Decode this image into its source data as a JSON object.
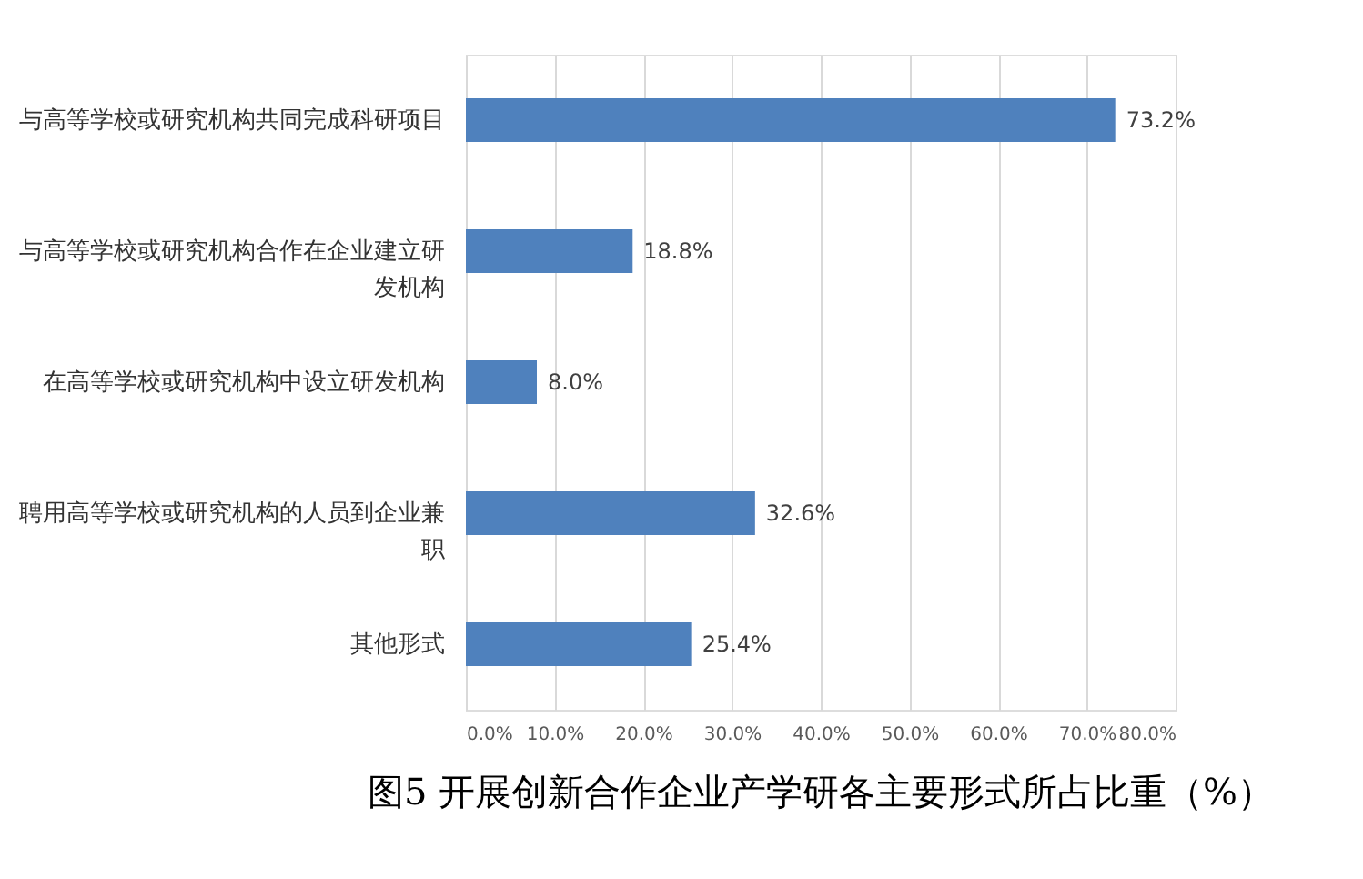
{
  "chart_data": {
    "type": "bar",
    "orientation": "horizontal",
    "title": "图5 开展创新合作企业产学研各主要形式所占比重（%）",
    "categories": [
      "与高等学校或研究机构共同完成科研项目",
      "与高等学校或研究机构合作在企业建立研发机构",
      "在高等学校或研究机构中设立研发机构",
      "聘用高等学校或研究机构的人员到企业兼职",
      "其他形式"
    ],
    "values": [
      73.2,
      18.8,
      8.0,
      32.6,
      25.4
    ],
    "value_labels": [
      "73.2%",
      "18.8%",
      "8.0%",
      "32.6%",
      "25.4%"
    ],
    "color": "#4f81bd",
    "xlim": [
      0,
      80
    ],
    "xticks": [
      {
        "value": 0,
        "label": "0.0%"
      },
      {
        "value": 10,
        "label": "10.0%"
      },
      {
        "value": 20,
        "label": "20.0%"
      },
      {
        "value": 30,
        "label": "30.0%"
      },
      {
        "value": 40,
        "label": "40.0%"
      },
      {
        "value": 50,
        "label": "50.0%"
      },
      {
        "value": 60,
        "label": "60.0%"
      },
      {
        "value": 70,
        "label": "70.0%"
      },
      {
        "value": 80,
        "label": "80.0%"
      }
    ],
    "grid": "x",
    "legend": false
  }
}
